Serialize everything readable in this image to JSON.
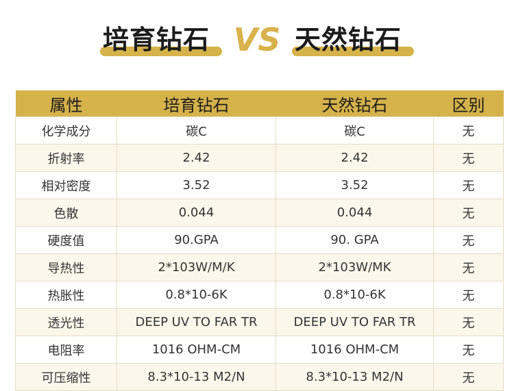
{
  "title": {
    "left": "培育钻石",
    "vs": "VS",
    "right": "天然钻石"
  },
  "table": {
    "headers": [
      "属性",
      "培育钻石",
      "天然钻石",
      "区别"
    ],
    "rows": [
      [
        "化学成分",
        "碳C",
        "碳C",
        "无"
      ],
      [
        "折射率",
        "2.42",
        "2.42",
        "无"
      ],
      [
        "相对密度",
        "3.52",
        "3.52",
        "无"
      ],
      [
        "色散",
        "0.044",
        "0.044",
        "无"
      ],
      [
        "硬度值",
        "90.GPA",
        "90. GPA",
        "无"
      ],
      [
        "导热性",
        "2*103W/M/K",
        "2*103W/MK",
        "无"
      ],
      [
        "热胀性",
        "0.8*10-6K",
        "0.8*10-6K",
        "无"
      ],
      [
        "透光性",
        "DEEP UV TO FAR TR",
        "DEEP UV TO FAR TR",
        "无"
      ],
      [
        "电阻率",
        "1016 OHM-CM",
        "1016 OHM-CM",
        "无"
      ],
      [
        "可压缩性",
        "8.3*10-13 M2/N",
        "8.3*10-13 M2/N",
        "无"
      ]
    ]
  },
  "colors": {
    "accent": "#d6b24a",
    "row_alt": "#fbf7ea"
  }
}
